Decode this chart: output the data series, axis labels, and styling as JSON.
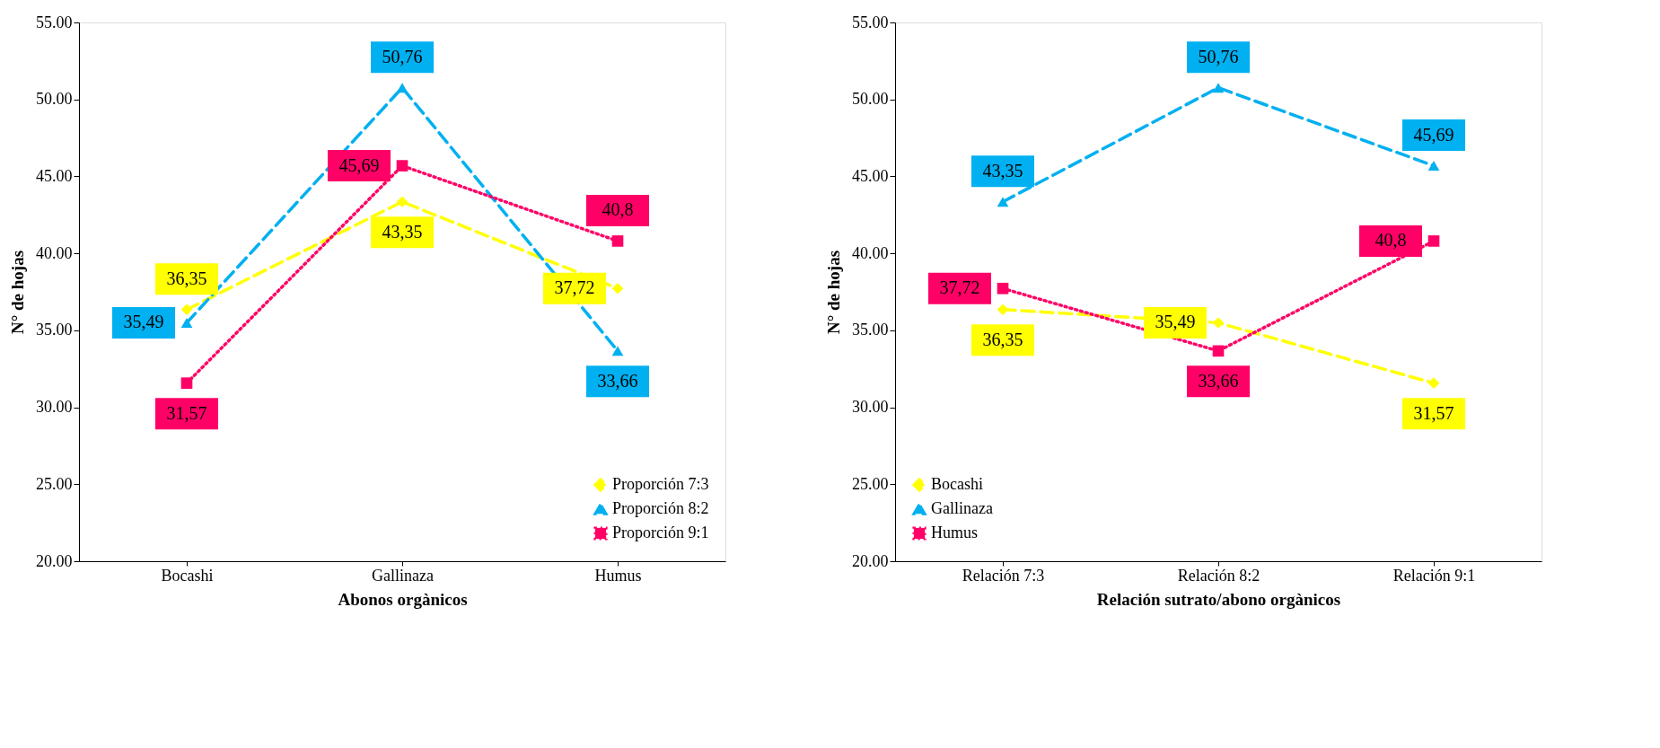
{
  "chart_data": [
    {
      "type": "line",
      "xlabel": "Abonos orgànicos",
      "ylabel": "N° de hojas",
      "categories": [
        "Bocashi",
        "Gallinaza",
        "Humus"
      ],
      "ylim": [
        20,
        55
      ],
      "yticks": [
        {
          "value": 20,
          "label": "20.00"
        },
        {
          "value": 25,
          "label": "25.00"
        },
        {
          "value": 30,
          "label": "30.00"
        },
        {
          "value": 35,
          "label": "35.00"
        },
        {
          "value": 40,
          "label": "40.00"
        },
        {
          "value": 45,
          "label": "45.00"
        },
        {
          "value": 50,
          "label": "50.00"
        },
        {
          "value": 55,
          "label": "55.00"
        }
      ],
      "grid": false,
      "legend": "bottom right",
      "series": [
        {
          "name": "Proporción 7:3",
          "color": "#ffff00",
          "marker": "diamond",
          "line_style": "dashed",
          "values": [
            36.35,
            43.35,
            37.72
          ],
          "value_labels": [
            "36,35",
            "43,35",
            "37,72"
          ]
        },
        {
          "name": "Proporción 8:2",
          "color": "#00b0f0",
          "marker": "triangle",
          "line_style": "dashed",
          "values": [
            35.49,
            50.76,
            33.66
          ],
          "value_labels": [
            "35,49",
            "50,76",
            "33,66"
          ]
        },
        {
          "name": "Proporción 9:1",
          "color": "#ff0066",
          "marker": "square",
          "line_style": "dotted",
          "values": [
            31.57,
            45.69,
            40.8
          ],
          "value_labels": [
            "31,57",
            "45,69",
            "40,8"
          ]
        }
      ]
    },
    {
      "type": "line",
      "xlabel": "Relación sutrato/abono orgànicos",
      "ylabel": "N° de hojas",
      "categories": [
        "Relación 7:3",
        "Relación 8:2",
        "Relación 9:1"
      ],
      "ylim": [
        20,
        55
      ],
      "yticks": [
        {
          "value": 20,
          "label": "20.00"
        },
        {
          "value": 25,
          "label": "25.00"
        },
        {
          "value": 30,
          "label": "30.00"
        },
        {
          "value": 35,
          "label": "35.00"
        },
        {
          "value": 40,
          "label": "40.00"
        },
        {
          "value": 45,
          "label": "45.00"
        },
        {
          "value": 50,
          "label": "50.00"
        },
        {
          "value": 55,
          "label": "55.00"
        }
      ],
      "grid": false,
      "legend": "bottom left",
      "series": [
        {
          "name": "Bocashi",
          "color": "#ffff00",
          "marker": "diamond",
          "line_style": "dashed",
          "values": [
            36.35,
            35.49,
            31.57
          ],
          "value_labels": [
            "36,35",
            "35,49",
            "31,57"
          ]
        },
        {
          "name": "Gallinaza",
          "color": "#00b0f0",
          "marker": "triangle",
          "line_style": "dashed",
          "values": [
            43.35,
            50.76,
            45.69
          ],
          "value_labels": [
            "43,35",
            "50,76",
            "45,69"
          ]
        },
        {
          "name": "Humus",
          "color": "#ff0066",
          "marker": "square",
          "line_style": "dotted",
          "values": [
            37.72,
            33.66,
            40.8
          ],
          "value_labels": [
            "37,72",
            "33,66",
            "40,8"
          ]
        }
      ]
    }
  ]
}
